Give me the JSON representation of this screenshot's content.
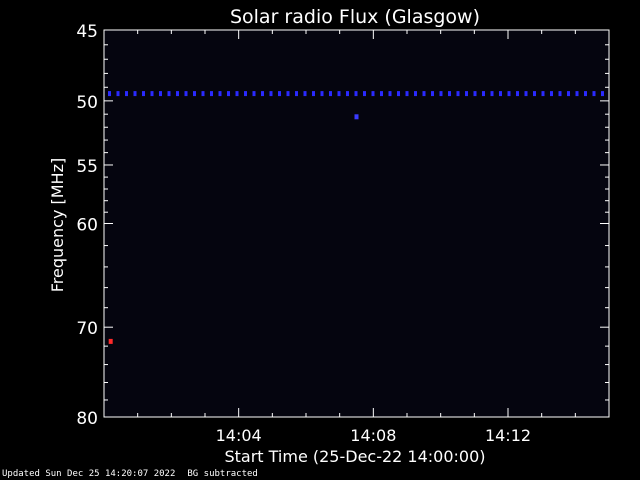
{
  "chart_data": {
    "type": "heatmap",
    "title": "Solar radio Flux (Glasgow)",
    "xlabel": "Start Time (25-Dec-22 14:00:00)",
    "ylabel": "Frequency [MHz]",
    "x_range_minutes": [
      0,
      15
    ],
    "x_ticks": [
      {
        "minute": 4,
        "label": "14:04"
      },
      {
        "minute": 8,
        "label": "14:08"
      },
      {
        "minute": 12,
        "label": "14:12"
      }
    ],
    "y_range_mhz": [
      45,
      80
    ],
    "y_scale": "log",
    "y_ticks": [
      {
        "value": 45,
        "label": "45"
      },
      {
        "value": 50,
        "label": "50"
      },
      {
        "value": 55,
        "label": "55"
      },
      {
        "value": 60,
        "label": "60"
      },
      {
        "value": 70,
        "label": "70"
      },
      {
        "value": 80,
        "label": "80"
      }
    ],
    "background_subtracted": true,
    "features": [
      {
        "kind": "band",
        "frequency_mhz": 49.5,
        "color": "#2a2aff"
      },
      {
        "kind": "spot",
        "minute": 7.5,
        "frequency_mhz": 51.2,
        "color": "#3a3aff"
      },
      {
        "kind": "spot",
        "minute": 0.2,
        "frequency_mhz": 71.5,
        "color": "#ff2a2a"
      }
    ],
    "colors": {
      "background": "#05050f",
      "axes": "#ffffff"
    }
  },
  "footer": {
    "updated": "Updated Sun Dec 25 14:20:07 2022",
    "note": "BG subtracted"
  }
}
